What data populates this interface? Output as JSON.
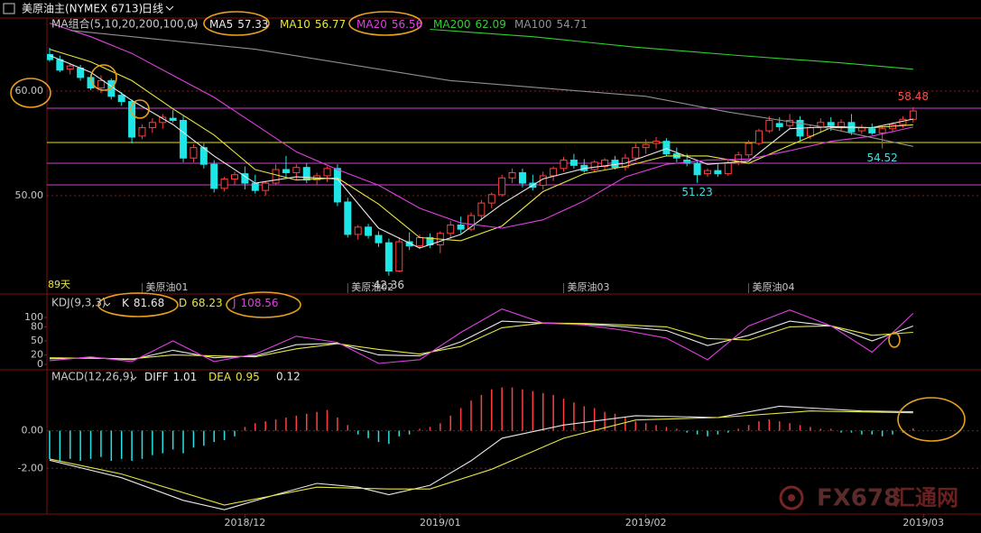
{
  "header": {
    "symbol": "美原油主(NYMEX 6713)",
    "period": "日线"
  },
  "watermark": {
    "brand": "FX678",
    "name": "汇通网"
  },
  "chart_data": [
    {
      "type": "candlestick",
      "title": "MA组合(5,10,20,200,100,0)",
      "up_color": "#ff4040",
      "down_color": "#1ee6e6",
      "xlim": [
        -0.26,
        90.6
      ],
      "ylim": [
        40.69,
        66.98
      ],
      "yticks": [
        {
          "value": 60,
          "label": "60.00"
        },
        {
          "value": 50,
          "label": "50.00"
        }
      ],
      "grid": true,
      "ohlc": [
        [
          63.5,
          64.14,
          62.8,
          63.0
        ],
        [
          63.0,
          63.4,
          61.8,
          62.0
        ],
        [
          62.1,
          62.6,
          61.6,
          62.4
        ],
        [
          62.2,
          62.5,
          61.0,
          61.3
        ],
        [
          61.3,
          61.6,
          60.1,
          60.3
        ],
        [
          60.3,
          61.5,
          59.8,
          61.0
        ],
        [
          61.0,
          61.2,
          59.2,
          59.5
        ],
        [
          59.6,
          59.9,
          58.6,
          59.0
        ],
        [
          59.0,
          59.2,
          55.0,
          55.6
        ],
        [
          55.7,
          56.8,
          55.4,
          56.5
        ],
        [
          56.5,
          57.4,
          56.0,
          57.0
        ],
        [
          57.0,
          57.8,
          56.4,
          57.5
        ],
        [
          57.4,
          58.2,
          57.0,
          57.2
        ],
        [
          57.2,
          57.6,
          53.2,
          53.6
        ],
        [
          53.6,
          54.9,
          53.2,
          54.6
        ],
        [
          54.6,
          55.0,
          52.6,
          53.0
        ],
        [
          53.0,
          53.4,
          50.3,
          50.7
        ],
        [
          50.7,
          51.8,
          50.4,
          51.6
        ],
        [
          51.6,
          52.3,
          51.0,
          52.0
        ],
        [
          52.1,
          52.8,
          50.6,
          51.2
        ],
        [
          51.2,
          52.0,
          50.2,
          50.5
        ],
        [
          50.5,
          51.4,
          50.0,
          51.2
        ],
        [
          51.2,
          53.0,
          51.0,
          52.5
        ],
        [
          52.5,
          53.8,
          51.8,
          52.2
        ],
        [
          52.2,
          53.0,
          51.5,
          52.7
        ],
        [
          52.7,
          53.1,
          51.2,
          51.5
        ],
        [
          51.5,
          52.2,
          51.0,
          51.9
        ],
        [
          51.9,
          52.8,
          51.3,
          52.6
        ],
        [
          52.6,
          53.0,
          49.0,
          49.4
        ],
        [
          49.4,
          49.8,
          46.0,
          46.3
        ],
        [
          46.3,
          47.2,
          45.8,
          47.0
        ],
        [
          47.0,
          47.3,
          45.9,
          46.2
        ],
        [
          46.2,
          46.6,
          45.1,
          45.5
        ],
        [
          45.5,
          45.9,
          42.36,
          42.8
        ],
        [
          42.8,
          46.0,
          42.7,
          45.6
        ],
        [
          45.6,
          46.5,
          44.8,
          45.2
        ],
        [
          45.2,
          46.3,
          44.9,
          46.0
        ],
        [
          46.0,
          46.4,
          45.0,
          45.3
        ],
        [
          45.3,
          46.6,
          44.5,
          46.4
        ],
        [
          46.4,
          47.6,
          45.9,
          47.2
        ],
        [
          47.2,
          48.0,
          46.4,
          46.8
        ],
        [
          46.8,
          48.4,
          46.6,
          48.1
        ],
        [
          48.1,
          49.6,
          47.6,
          49.3
        ],
        [
          49.3,
          50.3,
          48.8,
          50.1
        ],
        [
          50.1,
          52.0,
          49.9,
          51.7
        ],
        [
          51.7,
          52.6,
          51.2,
          52.2
        ],
        [
          52.2,
          52.6,
          50.8,
          51.2
        ],
        [
          51.2,
          52.0,
          50.5,
          50.8
        ],
        [
          51.0,
          52.3,
          50.6,
          51.9
        ],
        [
          51.9,
          52.8,
          51.4,
          52.6
        ],
        [
          52.6,
          53.7,
          52.3,
          53.4
        ],
        [
          53.4,
          54.0,
          52.6,
          52.9
        ],
        [
          52.9,
          53.5,
          52.2,
          52.4
        ],
        [
          52.5,
          53.4,
          52.3,
          53.2
        ],
        [
          52.8,
          53.6,
          52.5,
          53.4
        ],
        [
          53.4,
          53.8,
          52.5,
          52.7
        ],
        [
          52.7,
          54.0,
          52.4,
          53.6
        ],
        [
          53.6,
          55.0,
          53.3,
          54.6
        ],
        [
          54.6,
          55.4,
          54.0,
          54.9
        ],
        [
          55.0,
          55.6,
          54.5,
          55.2
        ],
        [
          55.2,
          55.5,
          53.8,
          54.0
        ],
        [
          54.0,
          54.6,
          53.2,
          53.6
        ],
        [
          53.4,
          54.0,
          52.8,
          53.1
        ],
        [
          53.1,
          53.4,
          51.23,
          52.0
        ],
        [
          52.1,
          52.6,
          51.8,
          52.4
        ],
        [
          52.4,
          53.0,
          51.8,
          52.1
        ],
        [
          52.1,
          53.4,
          51.9,
          53.1
        ],
        [
          53.1,
          54.2,
          52.9,
          53.9
        ],
        [
          53.9,
          55.3,
          53.6,
          55.0
        ],
        [
          55.0,
          56.4,
          54.8,
          56.2
        ],
        [
          56.2,
          57.6,
          56.0,
          57.2
        ],
        [
          56.9,
          57.5,
          56.2,
          56.6
        ],
        [
          56.7,
          57.8,
          56.4,
          57.2
        ],
        [
          57.2,
          57.6,
          55.3,
          55.7
        ],
        [
          55.7,
          56.8,
          55.4,
          56.5
        ],
        [
          56.5,
          57.4,
          56.0,
          57.0
        ],
        [
          57.0,
          57.5,
          56.2,
          56.7
        ],
        [
          56.6,
          57.3,
          56.2,
          57.0
        ],
        [
          57.0,
          57.8,
          55.8,
          56.1
        ],
        [
          56.2,
          56.8,
          55.9,
          56.5
        ],
        [
          56.4,
          56.9,
          55.8,
          56.0
        ],
        [
          56.0,
          56.6,
          54.52,
          56.4
        ],
        [
          56.4,
          57.0,
          56.1,
          56.8
        ],
        [
          56.8,
          57.6,
          56.5,
          57.3
        ],
        [
          57.3,
          58.48,
          57.0,
          58.1
        ]
      ],
      "series": [
        {
          "name": "MA5",
          "color": "#e8e8e8",
          "x": [
            0,
            4,
            8,
            12,
            16,
            20,
            24,
            28,
            32,
            36,
            40,
            44,
            48,
            52,
            56,
            60,
            64,
            68,
            72,
            76,
            80,
            84
          ],
          "values": [
            63.4,
            61.8,
            59.1,
            56.8,
            53.8,
            51.2,
            51.8,
            51.6,
            46.9,
            45.0,
            46.3,
            49.2,
            51.6,
            52.6,
            53.1,
            54.5,
            53.0,
            53.3,
            56.4,
            56.6,
            56.5,
            57.33
          ]
        },
        {
          "name": "MA10",
          "color": "#e6e640",
          "x": [
            0,
            4,
            8,
            12,
            16,
            20,
            24,
            28,
            32,
            36,
            40,
            44,
            48,
            52,
            56,
            60,
            64,
            68,
            72,
            76,
            80,
            84
          ],
          "values": [
            64.0,
            62.8,
            61.0,
            58.3,
            55.8,
            52.5,
            51.5,
            51.7,
            49.2,
            46.0,
            45.7,
            47.1,
            50.4,
            52.1,
            52.8,
            53.8,
            53.8,
            53.1,
            54.8,
            56.5,
            56.5,
            56.77
          ]
        },
        {
          "name": "MA20",
          "color": "#e040e0",
          "x": [
            0,
            4,
            8,
            12,
            16,
            20,
            24,
            28,
            32,
            36,
            40,
            44,
            48,
            52,
            56,
            60,
            64,
            68,
            72,
            76,
            80,
            84
          ],
          "values": [
            66.5,
            65.2,
            63.6,
            61.5,
            59.4,
            56.8,
            54.2,
            52.5,
            51.0,
            48.8,
            47.4,
            46.9,
            47.7,
            49.5,
            51.8,
            53.0,
            53.4,
            53.5,
            54.3,
            55.2,
            55.7,
            56.56
          ]
        },
        {
          "name": "MA200",
          "color": "#30d030",
          "x": [
            37,
            47,
            57,
            67,
            77,
            84
          ],
          "values": [
            65.9,
            65.2,
            64.2,
            63.4,
            62.7,
            62.09
          ]
        },
        {
          "name": "MA100",
          "color": "#909090",
          "x": [
            2,
            20,
            39,
            58,
            66,
            75,
            84
          ],
          "values": [
            65.8,
            64.0,
            61.0,
            59.5,
            58.0,
            56.6,
            54.71
          ]
        }
      ],
      "hlines": [
        {
          "value": 58.36,
          "color": "#d040d0"
        },
        {
          "value": 55.09,
          "color": "#e6e600"
        },
        {
          "value": 53.1,
          "color": "#d040d0"
        },
        {
          "value": 51.03,
          "color": "#d040d0"
        }
      ],
      "annotations": [
        {
          "x": 84,
          "value": 58.48,
          "position": "above",
          "color": "#ff5050"
        },
        {
          "x": 81,
          "value": 54.52,
          "position": "below",
          "color": "#40e0e0"
        },
        {
          "x": 63,
          "value": 51.23,
          "position": "below",
          "color": "#40e0e0"
        },
        {
          "x": 33,
          "value": 42.36,
          "position": "below",
          "color": "#d0d0d0"
        }
      ],
      "contracts": [
        {
          "x": 9,
          "label": "美原油01"
        },
        {
          "x": 29,
          "label": "美原油02"
        },
        {
          "x": 50,
          "label": "美原油03"
        },
        {
          "x": 68,
          "label": "美原油04"
        }
      ],
      "period_label": "89天"
    },
    {
      "type": "line",
      "title": "KDJ(9,3,3)",
      "xlim": [
        -0.26,
        90.6
      ],
      "ylim": [
        -11.5,
        148
      ],
      "yticks": [
        100,
        80,
        50,
        20,
        0
      ],
      "grid": false,
      "series": [
        {
          "name": "K",
          "color": "#e8e8e8",
          "x": [
            0,
            4,
            8,
            12,
            16,
            20,
            24,
            28,
            32,
            36,
            40,
            44,
            48,
            52,
            56,
            60,
            64,
            68,
            72,
            76,
            80,
            84
          ],
          "values": [
            12,
            14,
            10,
            30,
            14,
            18,
            42,
            45,
            20,
            18,
            48,
            92,
            88,
            86,
            80,
            72,
            40,
            62,
            92,
            82,
            50,
            81.68
          ]
        },
        {
          "name": "D",
          "color": "#e6e640",
          "x": [
            0,
            4,
            8,
            12,
            16,
            20,
            24,
            28,
            32,
            36,
            40,
            44,
            48,
            52,
            56,
            60,
            64,
            68,
            72,
            76,
            80,
            84
          ],
          "values": [
            14,
            13,
            12,
            20,
            18,
            16,
            33,
            44,
            32,
            22,
            38,
            78,
            88,
            87,
            84,
            80,
            55,
            52,
            80,
            82,
            62,
            68.23
          ]
        },
        {
          "name": "J",
          "color": "#e040e0",
          "x": [
            0,
            4,
            8,
            12,
            16,
            20,
            24,
            28,
            32,
            36,
            40,
            44,
            48,
            52,
            56,
            60,
            64,
            68,
            72,
            76,
            80,
            84
          ],
          "values": [
            8,
            16,
            6,
            50,
            6,
            22,
            60,
            47,
            2,
            10,
            68,
            118,
            88,
            84,
            72,
            56,
            10,
            82,
            116,
            82,
            26,
            108.56
          ]
        }
      ]
    },
    {
      "type": "macd",
      "title": "MACD(12,26,9)",
      "xlim": [
        -0.26,
        90.6
      ],
      "ylim": [
        -4.43,
        3.19
      ],
      "yticks": [
        {
          "value": 0,
          "label": "0.00"
        },
        {
          "value": -2,
          "label": "-2.00"
        }
      ],
      "grid": true,
      "xticks": [
        {
          "value": 19,
          "label": "2018/12"
        },
        {
          "value": 38,
          "label": "2019/01"
        },
        {
          "value": 58,
          "label": "2019/02"
        },
        {
          "value": 85,
          "label": "2019/03"
        }
      ],
      "histogram": {
        "up_color": "#ff4040",
        "down_color": "#1ee6e6",
        "legend_color": "#e8e8e8",
        "values": [
          -1.5,
          -1.6,
          -1.5,
          -1.6,
          -1.5,
          -1.4,
          -1.6,
          -1.5,
          -1.6,
          -1.5,
          -1.3,
          -1.2,
          -1.0,
          -1.2,
          -0.9,
          -0.8,
          -0.6,
          -0.5,
          -0.3,
          0.2,
          0.4,
          0.5,
          0.6,
          0.7,
          0.8,
          0.9,
          1.0,
          1.1,
          0.7,
          0.3,
          -0.2,
          -0.4,
          -0.6,
          -0.7,
          -0.3,
          -0.2,
          0.1,
          0.2,
          0.4,
          0.8,
          1.2,
          1.6,
          1.9,
          2.2,
          2.3,
          2.3,
          2.2,
          2.1,
          2.0,
          1.9,
          1.7,
          1.5,
          1.3,
          1.2,
          1.0,
          0.9,
          0.7,
          0.5,
          0.4,
          0.3,
          0.2,
          0.1,
          -0.1,
          -0.2,
          -0.3,
          -0.2,
          -0.1,
          0.1,
          0.3,
          0.5,
          0.6,
          0.5,
          0.4,
          0.3,
          0.2,
          0.1,
          0.1,
          -0.1,
          -0.1,
          -0.2,
          -0.2,
          -0.3,
          -0.2,
          -0.1,
          0.12
        ]
      },
      "series": [
        {
          "name": "DIFF",
          "color": "#e8e8e8",
          "x": [
            0,
            7,
            13,
            17,
            22,
            26,
            30,
            33,
            37,
            41,
            44,
            50,
            57,
            65,
            71,
            79,
            84
          ],
          "values": [
            -1.57,
            -2.5,
            -3.7,
            -4.2,
            -3.4,
            -2.8,
            -3.0,
            -3.4,
            -2.9,
            -1.6,
            -0.4,
            0.3,
            0.8,
            0.7,
            1.3,
            1.05,
            1.01
          ]
        },
        {
          "name": "DEA",
          "color": "#e6e640",
          "x": [
            0,
            7,
            17,
            26,
            33,
            37,
            43,
            50,
            57,
            65,
            74,
            84
          ],
          "values": [
            -1.5,
            -2.3,
            -3.95,
            -3.0,
            -3.1,
            -3.1,
            -2.05,
            -0.4,
            0.57,
            0.7,
            1.05,
            0.95
          ]
        }
      ]
    }
  ]
}
